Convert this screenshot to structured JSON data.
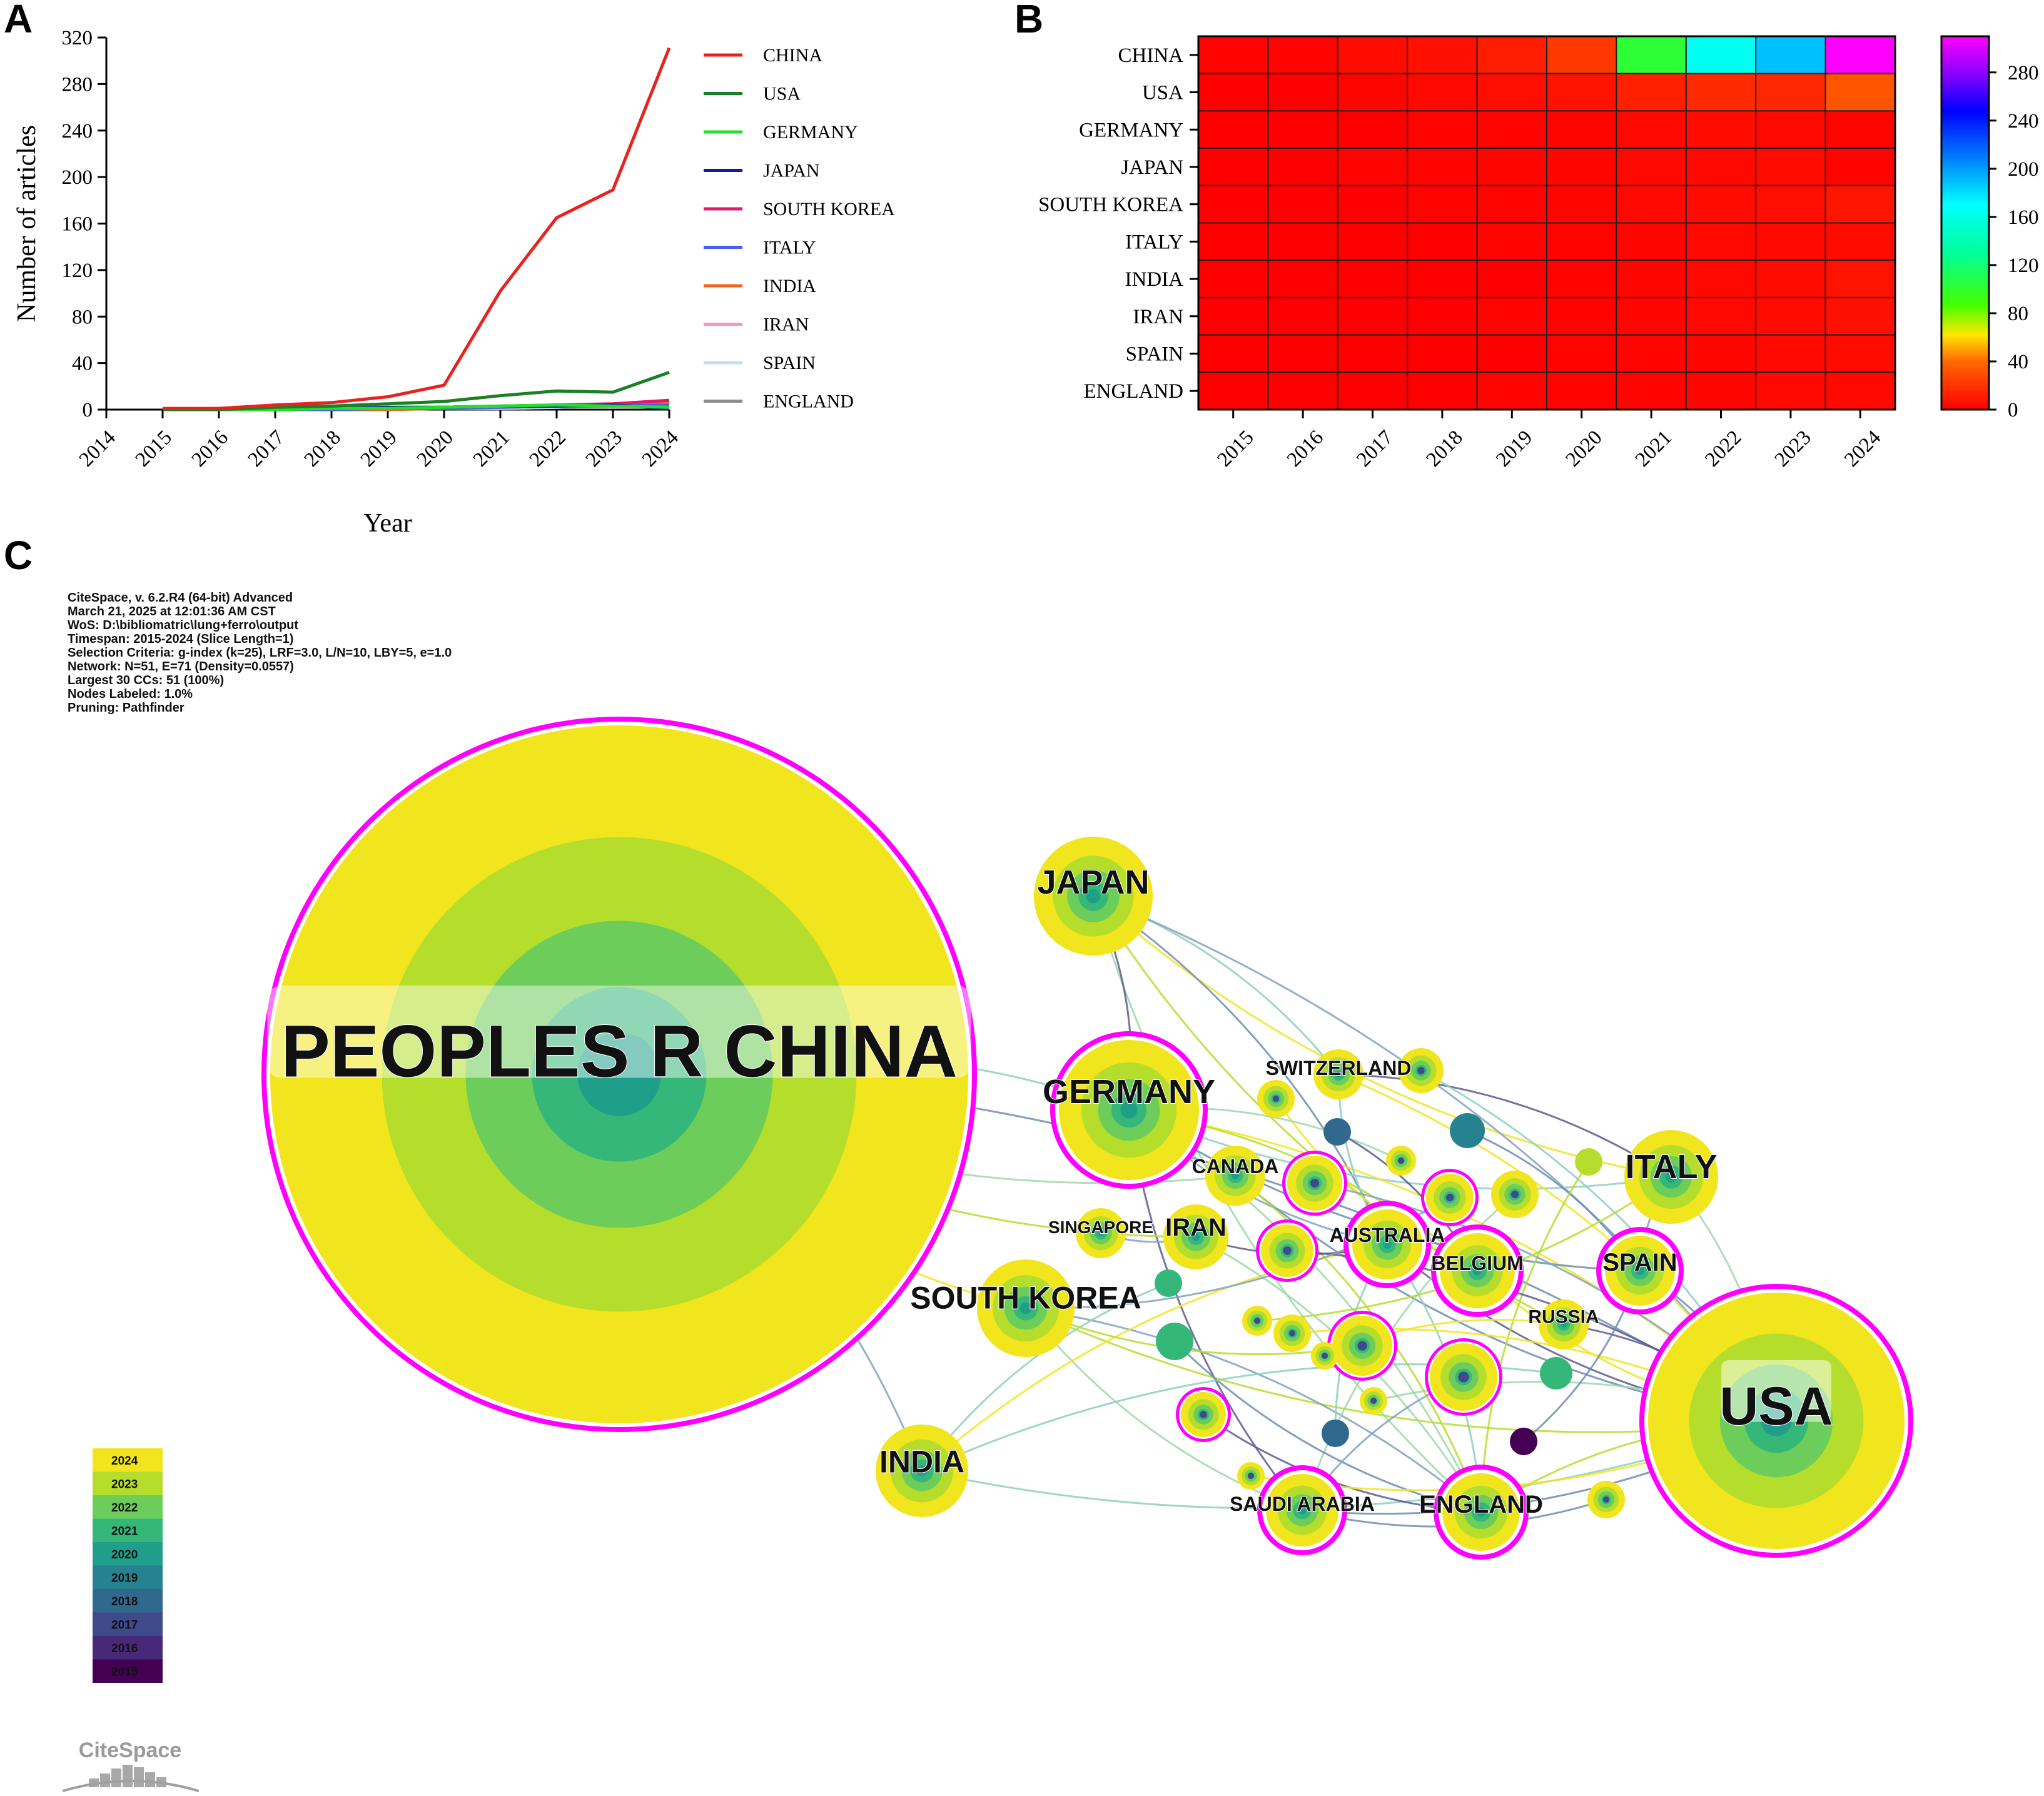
{
  "panels": {
    "a": "A",
    "b": "B",
    "c": "C"
  },
  "chart_data": [
    {
      "type": "line",
      "x": [
        2014,
        2015,
        2016,
        2017,
        2018,
        2019,
        2020,
        2021,
        2022,
        2023,
        2024
      ],
      "xlabel": "Year",
      "ylabel": "Number of articles",
      "ylim": [
        0,
        320
      ],
      "yticks": [
        0,
        40,
        80,
        120,
        160,
        200,
        240,
        280,
        320
      ],
      "legend_position": "right",
      "series": [
        {
          "name": "CHINA",
          "color": "#e8231f",
          "values": [
            null,
            1,
            1,
            4,
            6,
            11,
            21,
            102,
            165,
            189,
            311
          ]
        },
        {
          "name": "USA",
          "color": "#1a7f25",
          "values": [
            null,
            0,
            0,
            2,
            3,
            5,
            7,
            12,
            16,
            15,
            32
          ]
        },
        {
          "name": "GERMANY",
          "color": "#22e02a",
          "values": [
            null,
            0,
            0,
            0,
            1,
            1,
            2,
            3,
            4,
            3,
            2
          ]
        },
        {
          "name": "JAPAN",
          "color": "#101aa6",
          "values": [
            null,
            0,
            0,
            1,
            1,
            2,
            2,
            3,
            3,
            4,
            1
          ]
        },
        {
          "name": "SOUTH KOREA",
          "color": "#e2186e",
          "values": [
            null,
            0,
            0,
            0,
            1,
            1,
            2,
            3,
            4,
            5,
            8
          ]
        },
        {
          "name": "ITALY",
          "color": "#4a5ff0",
          "values": [
            null,
            0,
            0,
            0,
            0,
            1,
            1,
            2,
            3,
            3,
            4
          ]
        },
        {
          "name": "INDIA",
          "color": "#f2661b",
          "values": [
            null,
            0,
            0,
            0,
            0,
            0,
            1,
            2,
            3,
            4,
            7
          ]
        },
        {
          "name": "IRAN",
          "color": "#f49ac1",
          "values": [
            null,
            0,
            0,
            0,
            0,
            1,
            1,
            2,
            3,
            4,
            6
          ]
        },
        {
          "name": "SPAIN",
          "color": "#c6dcf5",
          "values": [
            null,
            0,
            0,
            0,
            0,
            0,
            1,
            1,
            2,
            3,
            4
          ]
        },
        {
          "name": "ENGLAND",
          "color": "#8c8c8c",
          "values": [
            null,
            0,
            0,
            0,
            0,
            1,
            1,
            1,
            2,
            3,
            3
          ]
        }
      ]
    },
    {
      "type": "heatmap",
      "columns": [
        2015,
        2016,
        2017,
        2018,
        2019,
        2020,
        2021,
        2022,
        2023,
        2024
      ],
      "rows": [
        "CHINA",
        "USA",
        "GERMANY",
        "JAPAN",
        "SOUTH KOREA",
        "ITALY",
        "INDIA",
        "IRAN",
        "SPAIN",
        "ENGLAND"
      ],
      "values": [
        [
          1,
          1,
          4,
          6,
          11,
          21,
          102,
          165,
          189,
          311
        ],
        [
          0,
          0,
          2,
          3,
          5,
          7,
          12,
          16,
          15,
          32
        ],
        [
          0,
          0,
          0,
          1,
          1,
          2,
          3,
          4,
          3,
          2
        ],
        [
          0,
          0,
          1,
          1,
          2,
          2,
          3,
          3,
          4,
          1
        ],
        [
          0,
          0,
          0,
          1,
          1,
          2,
          3,
          4,
          5,
          8
        ],
        [
          0,
          0,
          0,
          0,
          1,
          1,
          2,
          3,
          3,
          4
        ],
        [
          0,
          0,
          0,
          0,
          0,
          1,
          2,
          3,
          4,
          7
        ],
        [
          0,
          0,
          0,
          0,
          1,
          1,
          2,
          3,
          4,
          6
        ],
        [
          0,
          0,
          0,
          0,
          0,
          1,
          1,
          2,
          3,
          4
        ],
        [
          0,
          0,
          0,
          0,
          1,
          1,
          1,
          2,
          3,
          3
        ]
      ],
      "colorbar_ticks": [
        0,
        40,
        80,
        120,
        160,
        200,
        240,
        280
      ],
      "colorbar_range": [
        0,
        310
      ]
    }
  ],
  "network": {
    "info_lines": [
      "CiteSpace, v. 6.2.R4 (64-bit) Advanced",
      "March 21, 2025 at 12:01:36 AM CST",
      "WoS: D:\\bibliomatric\\lung+ferro\\output",
      "Timespan: 2015-2024 (Slice Length=1)",
      "Selection Criteria: g-index (k=25), LRF=3.0, L/N=10, LBY=5, e=1.0",
      "Network: N=51, E=71 (Density=0.0557)",
      "Largest 30 CCs: 51 (100%)",
      "Nodes Labeled: 1.0%",
      "Pruning: Pathfinder"
    ],
    "nodes": [
      {
        "label": "PEOPLES R CHINA"
      },
      {
        "label": "USA"
      },
      {
        "label": "JAPAN"
      },
      {
        "label": "GERMANY"
      },
      {
        "label": "SWITZERLAND"
      },
      {
        "label": "CANADA"
      },
      {
        "label": "ITALY"
      },
      {
        "label": "SINGAPORE"
      },
      {
        "label": "IRAN"
      },
      {
        "label": "AUSTRALIA"
      },
      {
        "label": "BELGIUM"
      },
      {
        "label": "SPAIN"
      },
      {
        "label": "SOUTH KOREA"
      },
      {
        "label": "RUSSIA"
      },
      {
        "label": "INDIA"
      },
      {
        "label": "SAUDI ARABIA"
      },
      {
        "label": "ENGLAND"
      }
    ],
    "timeline_years": [
      "2024",
      "2023",
      "2022",
      "2021",
      "2020",
      "2019",
      "2018",
      "2017",
      "2016",
      "2015"
    ],
    "timeline_colors": [
      "#f1e51d",
      "#b5de2c",
      "#6ccd5a",
      "#35b779",
      "#1f9e89",
      "#26828e",
      "#31688e",
      "#3e4a89",
      "#482878",
      "#440154"
    ],
    "logo_text": "CiteSpace"
  }
}
